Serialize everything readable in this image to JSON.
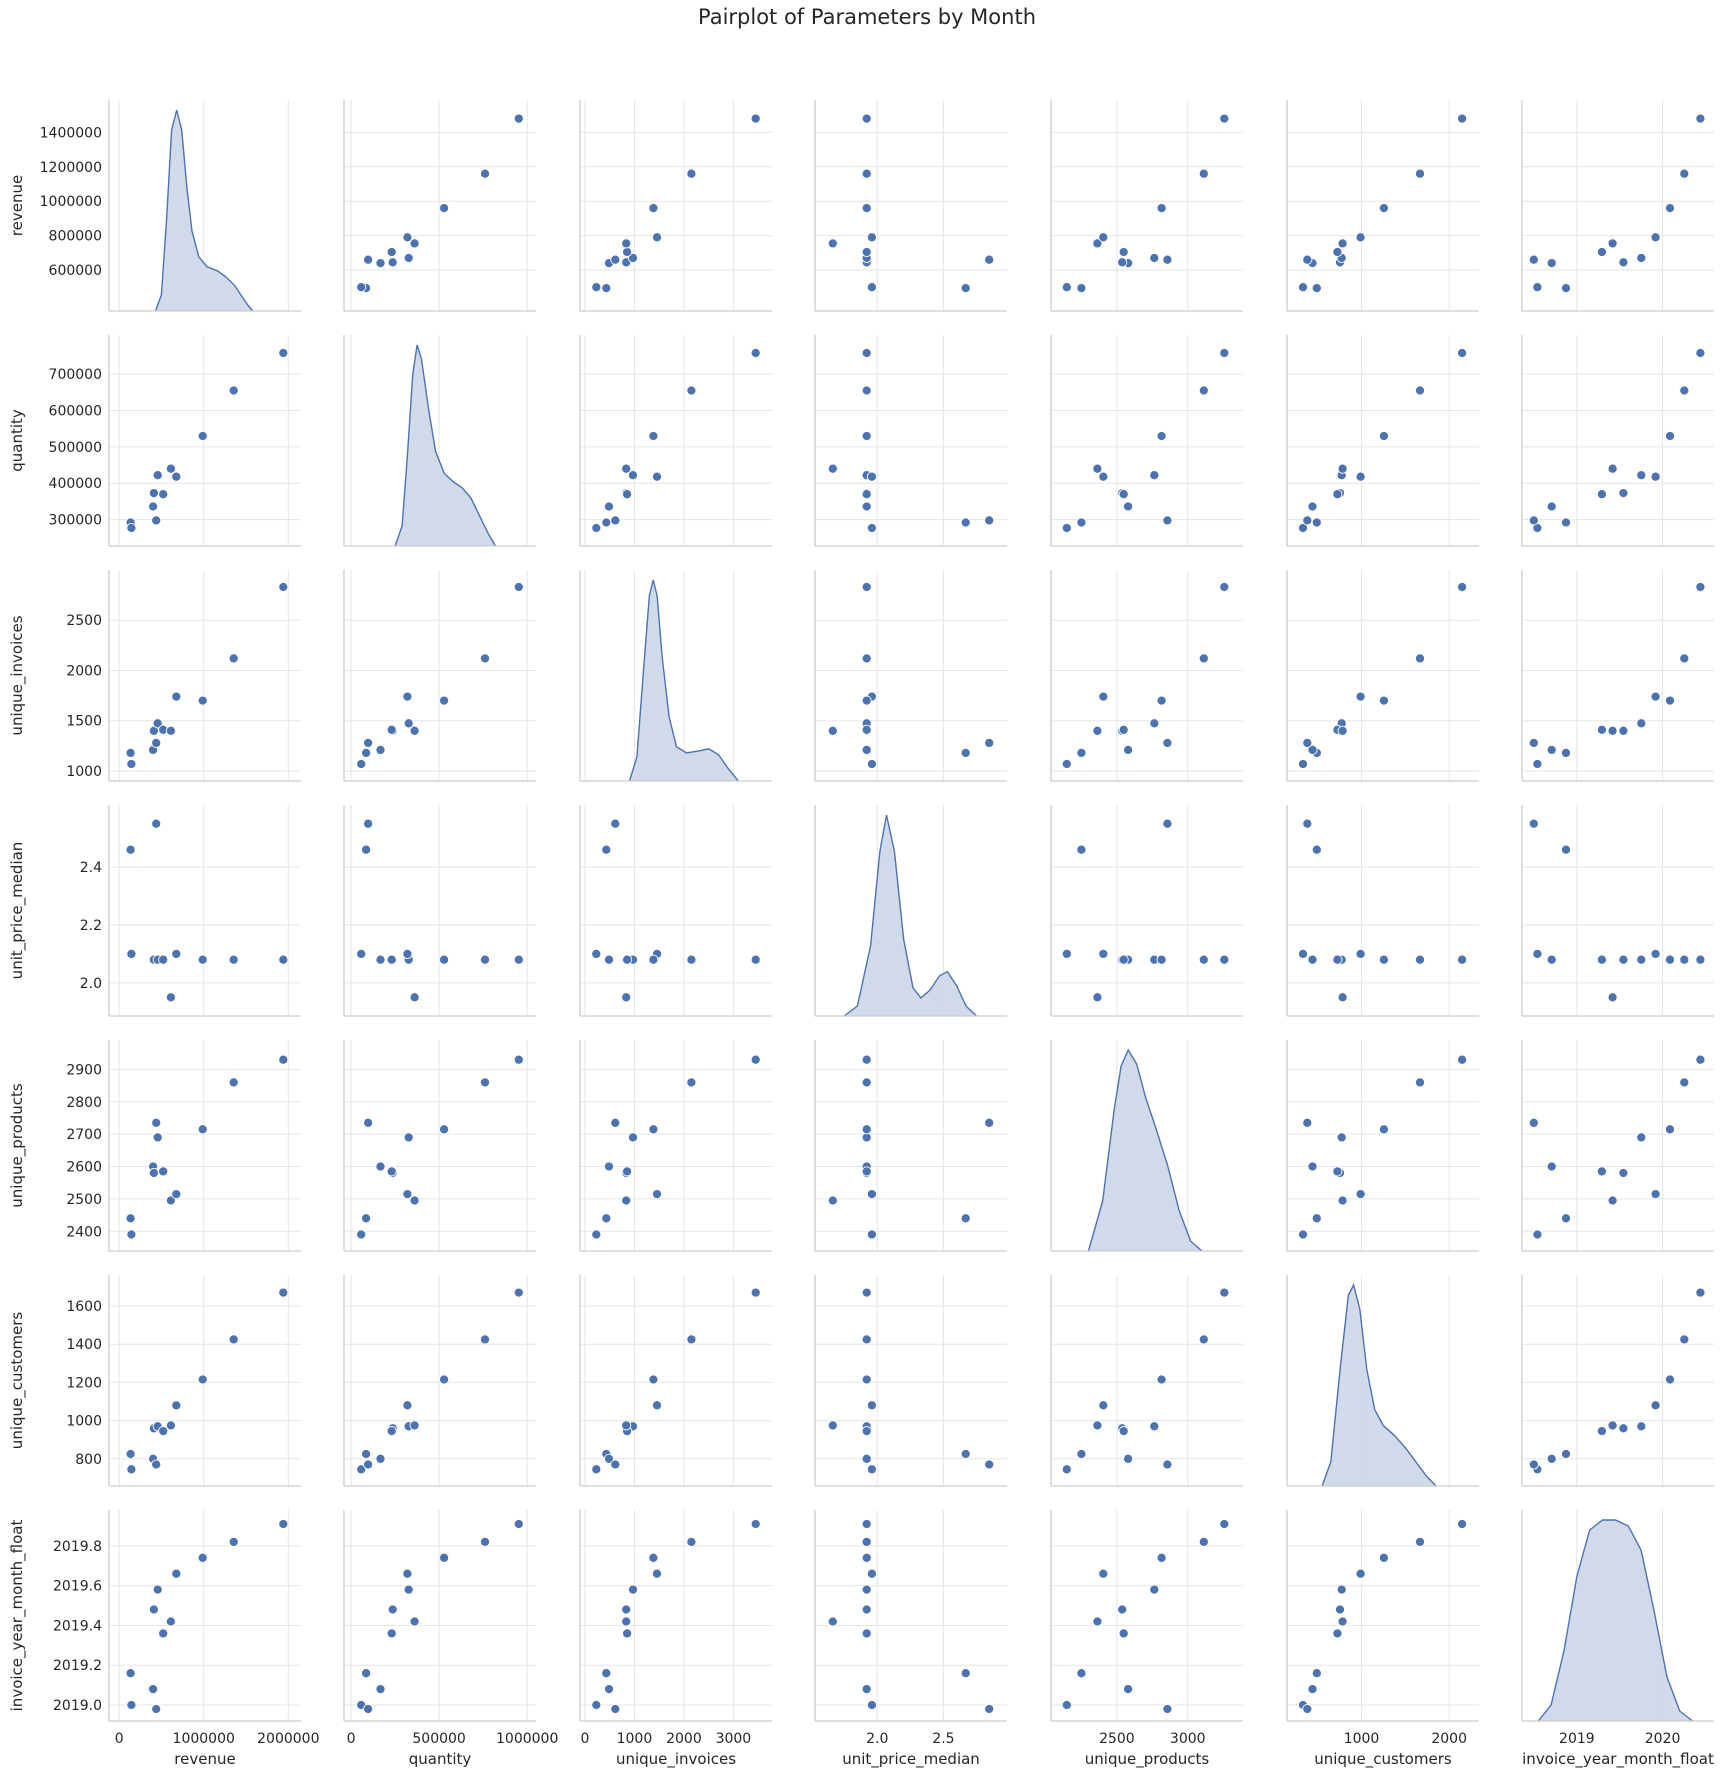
{
  "chart_data": {
    "type": "scatter",
    "title": "Pairplot of Parameters by Month",
    "variables": [
      "revenue",
      "quantity",
      "unique_invoices",
      "unit_price_median",
      "unique_products",
      "unique_customers",
      "invoice_year_month_float"
    ],
    "axes": {
      "revenue": {
        "lim": [
          420000,
          1530000
        ],
        "ticks": [
          600000,
          800000,
          1000000,
          1200000,
          1400000
        ],
        "xlim": [
          -120000,
          2150000
        ],
        "xticks": [
          0,
          1000000,
          2000000
        ],
        "xtick_labels": [
          "0",
          "1000000",
          "2000000"
        ]
      },
      "quantity": {
        "lim": [
          255000,
          780000
        ],
        "ticks": [
          300000,
          400000,
          500000,
          600000,
          700000
        ],
        "xlim": [
          -40000,
          1050000
        ],
        "xticks": [
          0,
          500000,
          1000000
        ],
        "xtick_labels": [
          "0",
          "500000",
          "1000000"
        ]
      },
      "unique_invoices": {
        "lim": [
          1000,
          2900
        ],
        "ticks": [
          1000,
          1500,
          2000,
          2500
        ],
        "xlim": [
          -100,
          3780
        ],
        "xticks": [
          0,
          1000,
          2000,
          3000
        ],
        "xtick_labels": [
          "0",
          "1000",
          "2000",
          "3000"
        ]
      },
      "unit_price_median": {
        "lim": [
          1.92,
          2.58
        ],
        "ticks": [
          2.0,
          2.2,
          2.4
        ],
        "tick_labels": [
          "2.0",
          "2.2",
          "2.4"
        ],
        "xlim": [
          1.53,
          2.98
        ],
        "xticks": [
          2.0,
          2.5
        ],
        "xtick_labels": [
          "2.0",
          "2.5"
        ]
      },
      "unique_products": {
        "lim": [
          2370,
          2960
        ],
        "ticks": [
          2400,
          2500,
          2600,
          2700,
          2800,
          2900
        ],
        "xlim": [
          2035,
          3390
        ],
        "xticks": [
          2500,
          3000
        ],
        "xtick_labels": [
          "2500",
          "3000"
        ]
      },
      "unique_customers": {
        "lim": [
          710,
          1710
        ],
        "ticks": [
          800,
          1000,
          1200,
          1400,
          1600
        ],
        "xlim": [
          150,
          2340
        ],
        "xticks": [
          1000,
          2000
        ],
        "xtick_labels": [
          "1000",
          "2000"
        ]
      },
      "invoice_year_month_float": {
        "lim": [
          2018.97,
          2019.93
        ],
        "ticks": [
          2019.0,
          2019.2,
          2019.4,
          2019.6,
          2019.8
        ],
        "tick_labels": [
          "2019.0",
          "2019.2",
          "2019.4",
          "2019.6",
          "2019.8"
        ],
        "xlim": [
          2018.36,
          2020.6
        ],
        "xticks": [
          2019,
          2020
        ],
        "xtick_labels": [
          "2019",
          "2020"
        ]
      }
    },
    "points": [
      [
        495000,
        292000,
        1180,
        2.46,
        2440,
        825,
        2019.16
      ],
      [
        500000,
        277000,
        1070,
        2.1,
        2390,
        745,
        2019.0
      ],
      [
        640000,
        336000,
        1210,
        2.08,
        2600,
        800,
        2019.08
      ],
      [
        645000,
        373000,
        1400,
        2.08,
        2580,
        960,
        2019.48
      ],
      [
        660000,
        298000,
        1280,
        2.55,
        2735,
        770,
        2018.98
      ],
      [
        670000,
        422000,
        1475,
        2.08,
        2690,
        970,
        2019.58
      ],
      [
        705000,
        370000,
        1410,
        2.08,
        2585,
        945,
        2019.36
      ],
      [
        755000,
        440000,
        1400,
        1.95,
        2495,
        975,
        2019.42
      ],
      [
        790000,
        418000,
        1740,
        2.1,
        2515,
        1080,
        2019.66
      ],
      [
        960000,
        530000,
        1700,
        2.08,
        2715,
        1215,
        2019.74
      ],
      [
        1160000,
        655000,
        2120,
        2.08,
        2860,
        1425,
        2019.82
      ],
      [
        1480000,
        758000,
        2830,
        2.08,
        2930,
        1670,
        2019.91
      ]
    ],
    "kde_diagonal": {
      "revenue": [
        [
          430000,
          0
        ],
        [
          500000,
          0.08
        ],
        [
          560000,
          0.45
        ],
        [
          620000,
          0.9
        ],
        [
          680000,
          1.0
        ],
        [
          740000,
          0.9
        ],
        [
          800000,
          0.62
        ],
        [
          860000,
          0.4
        ],
        [
          940000,
          0.27
        ],
        [
          1040000,
          0.22
        ],
        [
          1160000,
          0.2
        ],
        [
          1260000,
          0.17
        ],
        [
          1360000,
          0.13
        ],
        [
          1440000,
          0.08
        ],
        [
          1520000,
          0.03
        ],
        [
          1580000,
          0
        ]
      ],
      "quantity": [
        [
          250000,
          0
        ],
        [
          290000,
          0.1
        ],
        [
          320000,
          0.45
        ],
        [
          350000,
          0.85
        ],
        [
          375000,
          1.0
        ],
        [
          400000,
          0.93
        ],
        [
          440000,
          0.68
        ],
        [
          480000,
          0.47
        ],
        [
          530000,
          0.36
        ],
        [
          580000,
          0.32
        ],
        [
          630000,
          0.29
        ],
        [
          680000,
          0.24
        ],
        [
          730000,
          0.15
        ],
        [
          780000,
          0.06
        ],
        [
          820000,
          0
        ]
      ],
      "unique_invoices": [
        [
          900,
          0
        ],
        [
          1050,
          0.12
        ],
        [
          1200,
          0.6
        ],
        [
          1300,
          0.92
        ],
        [
          1380,
          1.0
        ],
        [
          1460,
          0.92
        ],
        [
          1560,
          0.62
        ],
        [
          1700,
          0.32
        ],
        [
          1850,
          0.17
        ],
        [
          2050,
          0.14
        ],
        [
          2300,
          0.15
        ],
        [
          2500,
          0.16
        ],
        [
          2700,
          0.13
        ],
        [
          2900,
          0.06
        ],
        [
          3100,
          0
        ]
      ],
      "unit_price_median": [
        [
          1.75,
          0
        ],
        [
          1.85,
          0.05
        ],
        [
          1.95,
          0.35
        ],
        [
          2.02,
          0.82
        ],
        [
          2.07,
          1.0
        ],
        [
          2.13,
          0.82
        ],
        [
          2.2,
          0.38
        ],
        [
          2.27,
          0.14
        ],
        [
          2.33,
          0.09
        ],
        [
          2.4,
          0.13
        ],
        [
          2.47,
          0.2
        ],
        [
          2.53,
          0.22
        ],
        [
          2.6,
          0.15
        ],
        [
          2.67,
          0.05
        ],
        [
          2.75,
          0
        ]
      ],
      "unique_products": [
        [
          2300,
          0
        ],
        [
          2400,
          0.25
        ],
        [
          2480,
          0.7
        ],
        [
          2530,
          0.92
        ],
        [
          2580,
          1.0
        ],
        [
          2640,
          0.93
        ],
        [
          2700,
          0.77
        ],
        [
          2780,
          0.6
        ],
        [
          2860,
          0.42
        ],
        [
          2940,
          0.2
        ],
        [
          3020,
          0.05
        ],
        [
          3100,
          0
        ]
      ],
      "unique_customers": [
        [
          550,
          0
        ],
        [
          650,
          0.12
        ],
        [
          760,
          0.6
        ],
        [
          850,
          0.95
        ],
        [
          910,
          1.0
        ],
        [
          980,
          0.88
        ],
        [
          1060,
          0.58
        ],
        [
          1150,
          0.38
        ],
        [
          1250,
          0.3
        ],
        [
          1380,
          0.25
        ],
        [
          1500,
          0.19
        ],
        [
          1620,
          0.12
        ],
        [
          1740,
          0.05
        ],
        [
          1850,
          0
        ]
      ],
      "invoice_year_month_float": [
        [
          2018.55,
          0
        ],
        [
          2018.7,
          0.08
        ],
        [
          2018.85,
          0.35
        ],
        [
          2019.0,
          0.72
        ],
        [
          2019.15,
          0.95
        ],
        [
          2019.3,
          1.0
        ],
        [
          2019.45,
          1.0
        ],
        [
          2019.6,
          0.97
        ],
        [
          2019.75,
          0.85
        ],
        [
          2019.9,
          0.55
        ],
        [
          2020.05,
          0.22
        ],
        [
          2020.2,
          0.05
        ],
        [
          2020.35,
          0
        ]
      ]
    },
    "colors": {
      "marker": "#4c72b0",
      "marker_edge": "#ffffff",
      "kde_fill": "#cfd8ea",
      "kde_line": "#4c72b0",
      "grid": "#e5e5e5",
      "spine": "#cccccc"
    },
    "grid": true
  }
}
